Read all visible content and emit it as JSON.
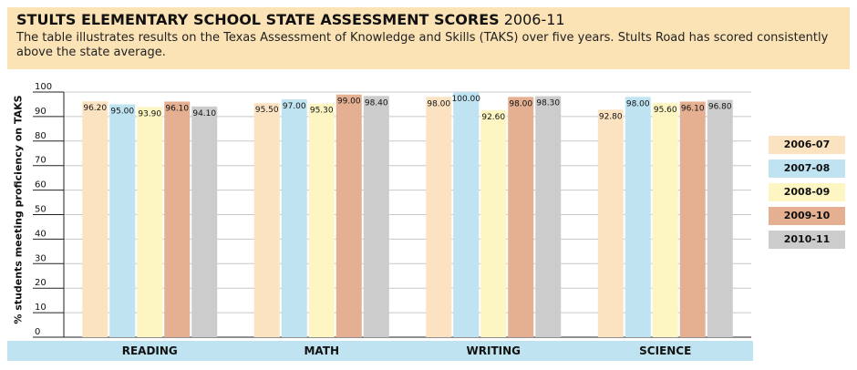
{
  "header": {
    "title_main": "STULTS ELEMENTARY SCHOOL STATE ASSESSMENT SCORES",
    "title_years": "2006-11",
    "subtitle": "The table illustrates results on the Texas Assessment of Knowledge and Skills (TAKS) over five years. Stults Road has scored consistently above the state average."
  },
  "colors": {
    "header_bg": "#fbe3b6",
    "axis_band": "#bfe3f0",
    "series": [
      "#fbe3c2",
      "#bfe3f0",
      "#fdf6c3",
      "#e4b091",
      "#cccccc"
    ]
  },
  "chart_data": {
    "type": "bar",
    "title": "",
    "ylabel": "% students  meeting proficiency on TAKS",
    "xlabel": "",
    "ylim": [
      0,
      100
    ],
    "yticks": [
      0,
      10,
      20,
      30,
      40,
      50,
      60,
      70,
      80,
      90,
      100
    ],
    "categories": [
      "READING",
      "MATH",
      "WRITING",
      "SCIENCE"
    ],
    "series": [
      {
        "name": "2006-07",
        "values": [
          96.2,
          95.5,
          98.0,
          92.8
        ],
        "labels": [
          "96.20",
          "95.50",
          "98.00",
          "92.80"
        ]
      },
      {
        "name": "2007-08",
        "values": [
          95.0,
          97.0,
          100.0,
          98.0
        ],
        "labels": [
          "95.00",
          "97.00",
          "100.00",
          "98.00"
        ]
      },
      {
        "name": "2008-09",
        "values": [
          93.9,
          95.3,
          92.6,
          95.6
        ],
        "labels": [
          "93.90",
          "95.30",
          "92.60",
          "95.60"
        ]
      },
      {
        "name": "2009-10",
        "values": [
          96.1,
          99.0,
          98.0,
          96.1
        ],
        "labels": [
          "96.10",
          "99.00",
          "98.00",
          "96.10"
        ]
      },
      {
        "name": "2010-11",
        "values": [
          94.1,
          98.4,
          98.3,
          96.8
        ],
        "labels": [
          "94.10",
          "98.40",
          "98.30",
          "96.80"
        ]
      }
    ],
    "grid": true,
    "legend_position": "right"
  }
}
